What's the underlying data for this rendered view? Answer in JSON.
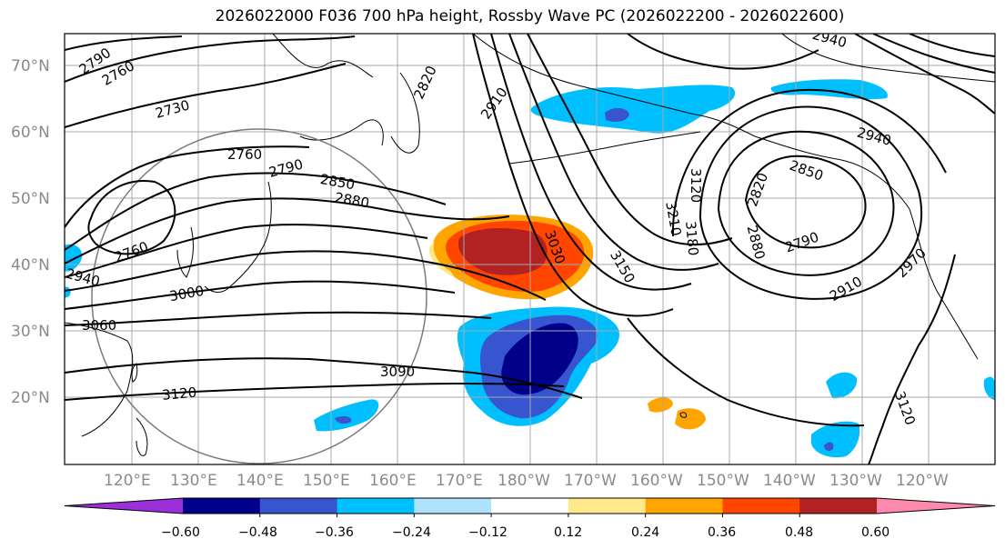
{
  "title": "2026022000 F036 700 hPa height, Rossby Wave PC (2026022200 - 2026022600)",
  "lat_ticks": [
    "70°N",
    "60°N",
    "50°N",
    "40°N",
    "30°N",
    "20°N"
  ],
  "lon_ticks": [
    "120°E",
    "130°E",
    "140°E",
    "150°E",
    "160°E",
    "170°E",
    "180°W",
    "170°W",
    "160°W",
    "150°W",
    "140°W",
    "130°W",
    "120°W"
  ],
  "contour_labels": [
    "2790",
    "2760",
    "2730",
    "2760",
    "2790",
    "2850",
    "2880",
    "2820",
    "2910",
    "2760",
    "2940",
    "3000",
    "3060",
    "3090",
    "3120",
    "3030",
    "3150",
    "3210",
    "3180",
    "3120",
    "2820",
    "2880",
    "2850",
    "2790",
    "2910",
    "2970",
    "2940",
    "2940",
    "3120"
  ],
  "colorbar": {
    "ticks": [
      "−0.60",
      "−0.48",
      "−0.36",
      "−0.24",
      "−0.12",
      "0.12",
      "0.24",
      "0.36",
      "0.48",
      "0.60"
    ],
    "colors": [
      "#9b30d9",
      "#00008b",
      "#3655cf",
      "#00bfff",
      "#aee3fb",
      "#ffffff",
      "#ffe98a",
      "#ffa500",
      "#ff4500",
      "#b22222",
      "#ff88ad"
    ]
  }
}
